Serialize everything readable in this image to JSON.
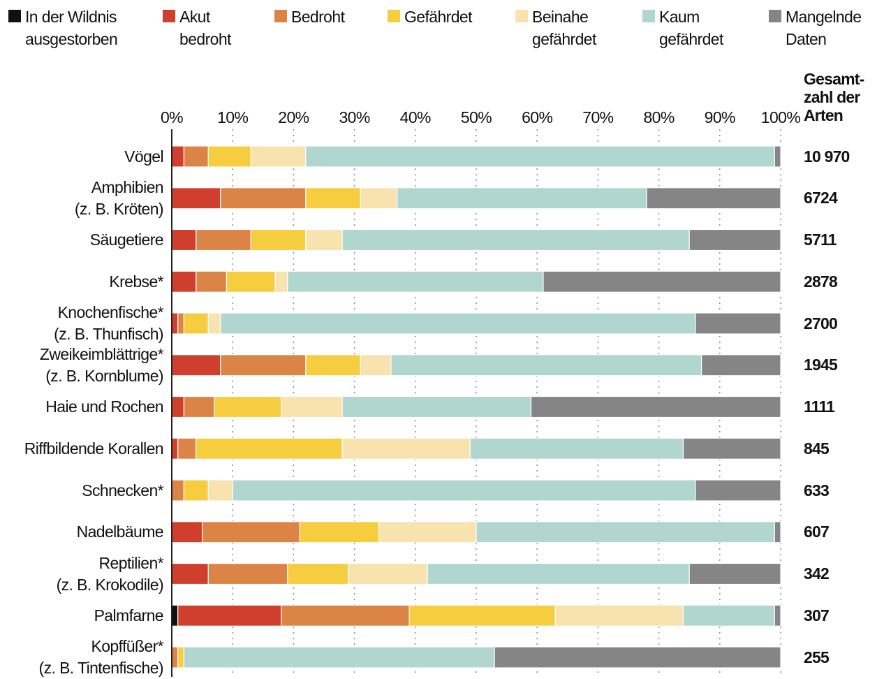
{
  "chart_data": {
    "type": "stacked-bar",
    "orientation": "horizontal",
    "categories": [
      "Vögel",
      "Amphibien\n(z. B. Kröten)",
      "Säugetiere",
      "Krebse*",
      "Knochenfische*\n(z. B. Thunfisch)",
      "Zweikeimblättrige*\n(z. B. Kornblume)",
      "Haie und Rochen",
      "Riffbildende Korallen",
      "Schnecken*",
      "Nadelbäume",
      "Reptilien*\n(z. B. Krokodile)",
      "Palmfarne",
      "Kopffüßer*\n(z. B. Tintenfische)"
    ],
    "series": [
      {
        "name": "In der Wildnis\nausgestorben",
        "color": "#111111",
        "values": [
          0,
          0,
          0,
          0,
          0,
          0,
          0,
          0,
          0,
          0,
          0,
          1,
          0
        ]
      },
      {
        "name": "Akut\nbedroht",
        "color": "#d03f2e",
        "values": [
          2,
          8,
          4,
          4,
          1,
          8,
          2,
          1,
          0,
          5,
          6,
          17,
          0
        ]
      },
      {
        "name": "Bedroht",
        "color": "#dc8445",
        "values": [
          4,
          14,
          9,
          5,
          1,
          14,
          5,
          3,
          2,
          16,
          13,
          21,
          1
        ]
      },
      {
        "name": "Gefährdet",
        "color": "#f5cd3f",
        "values": [
          7,
          9,
          9,
          8,
          4,
          9,
          11,
          24,
          4,
          13,
          10,
          24,
          1
        ]
      },
      {
        "name": "Beinahe\ngefährdet",
        "color": "#f8e2ae",
        "values": [
          9,
          6,
          6,
          2,
          2,
          5,
          10,
          21,
          4,
          16,
          13,
          21,
          0
        ]
      },
      {
        "name": "Kaum\ngefährdet",
        "color": "#b1d5cf",
        "values": [
          77,
          41,
          57,
          42,
          78,
          51,
          31,
          35,
          76,
          49,
          43,
          15,
          51
        ]
      },
      {
        "name": "Mangelnde\nDaten",
        "color": "#858585",
        "values": [
          1,
          22,
          15,
          39,
          14,
          13,
          41,
          16,
          14,
          1,
          15,
          1,
          47
        ]
      }
    ],
    "xlim": [
      0,
      100
    ],
    "xticks": [
      {
        "value": 0,
        "label": "0%"
      },
      {
        "value": 10,
        "label": "10%"
      },
      {
        "value": 20,
        "label": "20%"
      },
      {
        "value": 30,
        "label": "30%"
      },
      {
        "value": 40,
        "label": "40%"
      },
      {
        "value": 50,
        "label": "50%"
      },
      {
        "value": 60,
        "label": "60%"
      },
      {
        "value": 70,
        "label": "70%"
      },
      {
        "value": 80,
        "label": "80%"
      },
      {
        "value": 90,
        "label": "90%"
      },
      {
        "value": 100,
        "label": "100%"
      }
    ],
    "grid": true,
    "legend": "top",
    "totals": {
      "title": "Gesamt-\nzahl der\nArten",
      "values": [
        10970,
        6724,
        5711,
        2878,
        2700,
        1945,
        1111,
        845,
        633,
        607,
        342,
        307,
        255
      ],
      "value_labels": [
        "10 970",
        "6724",
        "5711",
        "2878",
        "2700",
        "1945",
        "1111",
        "845",
        "633",
        "607",
        "342",
        "307",
        "255"
      ]
    }
  }
}
